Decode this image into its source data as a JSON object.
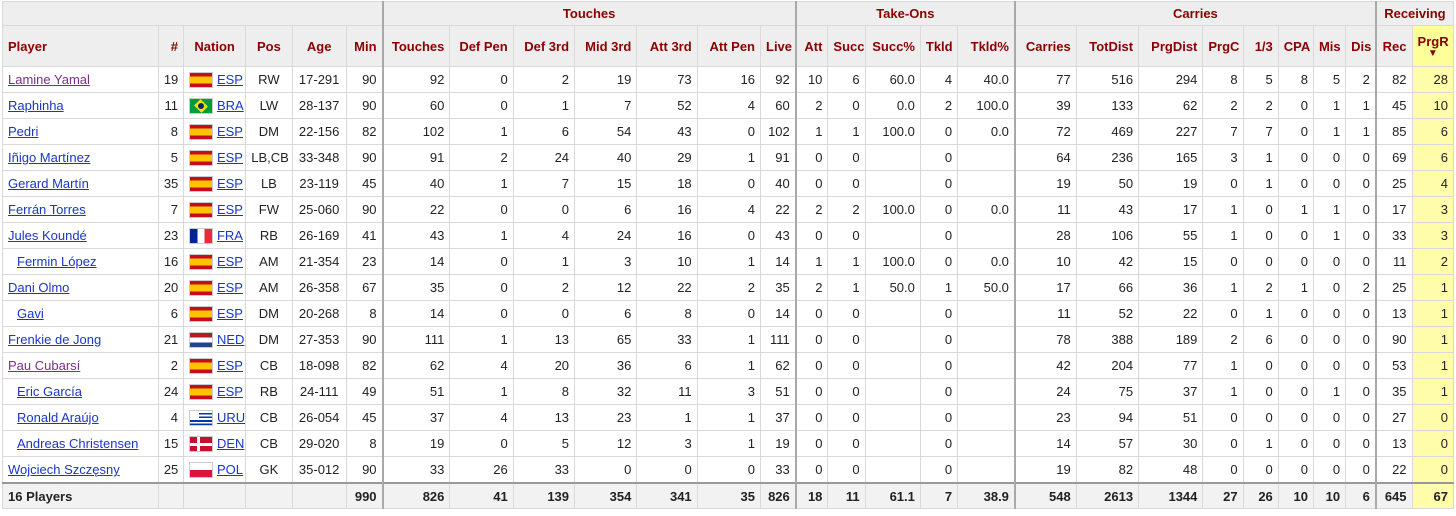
{
  "groups": [
    {
      "label": ""
    },
    {
      "label": "Touches"
    },
    {
      "label": "Take-Ons"
    },
    {
      "label": "Carries"
    },
    {
      "label": "Receiving"
    }
  ],
  "columns": [
    "Player",
    "#",
    "Nation",
    "Pos",
    "Age",
    "Min",
    "Touches",
    "Def Pen",
    "Def 3rd",
    "Mid 3rd",
    "Att 3rd",
    "Att Pen",
    "Live",
    "Att",
    "Succ",
    "Succ%",
    "Tkld",
    "Tkld%",
    "Carries",
    "TotDist",
    "PrgDist",
    "PrgC",
    "1/3",
    "CPA",
    "Mis",
    "Dis",
    "Rec",
    "PrgR"
  ],
  "sort_indicator": "▼",
  "rows": [
    {
      "player": "Lamine Yamal",
      "visited": true,
      "indent": false,
      "num": "19",
      "flag": "esp",
      "nation": "ESP",
      "pos": "RW",
      "age": "17-291",
      "min": "90",
      "stats": [
        "92",
        "0",
        "2",
        "19",
        "73",
        "16",
        "92",
        "10",
        "6",
        "60.0",
        "4",
        "40.0",
        "77",
        "516",
        "294",
        "8",
        "5",
        "8",
        "5",
        "2",
        "82",
        "28"
      ]
    },
    {
      "player": "Raphinha",
      "visited": false,
      "indent": false,
      "num": "11",
      "flag": "bra",
      "nation": "BRA",
      "pos": "LW",
      "age": "28-137",
      "min": "90",
      "stats": [
        "60",
        "0",
        "1",
        "7",
        "52",
        "4",
        "60",
        "2",
        "0",
        "0.0",
        "2",
        "100.0",
        "39",
        "133",
        "62",
        "2",
        "2",
        "0",
        "1",
        "1",
        "45",
        "10"
      ]
    },
    {
      "player": "Pedri",
      "visited": false,
      "indent": false,
      "num": "8",
      "flag": "esp",
      "nation": "ESP",
      "pos": "DM",
      "age": "22-156",
      "min": "82",
      "stats": [
        "102",
        "1",
        "6",
        "54",
        "43",
        "0",
        "102",
        "1",
        "1",
        "100.0",
        "0",
        "0.0",
        "72",
        "469",
        "227",
        "7",
        "7",
        "0",
        "1",
        "1",
        "85",
        "6"
      ]
    },
    {
      "player": "Iñigo Martínez",
      "visited": false,
      "indent": false,
      "num": "5",
      "flag": "esp",
      "nation": "ESP",
      "pos": "LB,CB",
      "age": "33-348",
      "min": "90",
      "stats": [
        "91",
        "2",
        "24",
        "40",
        "29",
        "1",
        "91",
        "0",
        "0",
        "",
        "0",
        "",
        "64",
        "236",
        "165",
        "3",
        "1",
        "0",
        "0",
        "0",
        "69",
        "6"
      ]
    },
    {
      "player": "Gerard Martín",
      "visited": false,
      "indent": false,
      "num": "35",
      "flag": "esp",
      "nation": "ESP",
      "pos": "LB",
      "age": "23-119",
      "min": "45",
      "stats": [
        "40",
        "1",
        "7",
        "15",
        "18",
        "0",
        "40",
        "0",
        "0",
        "",
        "0",
        "",
        "19",
        "50",
        "19",
        "0",
        "1",
        "0",
        "0",
        "0",
        "25",
        "4"
      ]
    },
    {
      "player": "Ferrán Torres",
      "visited": false,
      "indent": false,
      "num": "7",
      "flag": "esp",
      "nation": "ESP",
      "pos": "FW",
      "age": "25-060",
      "min": "90",
      "stats": [
        "22",
        "0",
        "0",
        "6",
        "16",
        "4",
        "22",
        "2",
        "2",
        "100.0",
        "0",
        "0.0",
        "11",
        "43",
        "17",
        "1",
        "0",
        "1",
        "1",
        "0",
        "17",
        "3"
      ]
    },
    {
      "player": "Jules Koundé",
      "visited": false,
      "indent": false,
      "num": "23",
      "flag": "fra",
      "nation": "FRA",
      "pos": "RB",
      "age": "26-169",
      "min": "41",
      "stats": [
        "43",
        "1",
        "4",
        "24",
        "16",
        "0",
        "43",
        "0",
        "0",
        "",
        "0",
        "",
        "28",
        "106",
        "55",
        "1",
        "0",
        "0",
        "1",
        "0",
        "33",
        "3"
      ]
    },
    {
      "player": "Fermin López",
      "visited": false,
      "indent": true,
      "num": "16",
      "flag": "esp",
      "nation": "ESP",
      "pos": "AM",
      "age": "21-354",
      "min": "23",
      "stats": [
        "14",
        "0",
        "1",
        "3",
        "10",
        "1",
        "14",
        "1",
        "1",
        "100.0",
        "0",
        "0.0",
        "10",
        "42",
        "15",
        "0",
        "0",
        "0",
        "0",
        "0",
        "11",
        "2"
      ]
    },
    {
      "player": "Dani Olmo",
      "visited": false,
      "indent": false,
      "num": "20",
      "flag": "esp",
      "nation": "ESP",
      "pos": "AM",
      "age": "26-358",
      "min": "67",
      "stats": [
        "35",
        "0",
        "2",
        "12",
        "22",
        "2",
        "35",
        "2",
        "1",
        "50.0",
        "1",
        "50.0",
        "17",
        "66",
        "36",
        "1",
        "2",
        "1",
        "0",
        "2",
        "25",
        "1"
      ]
    },
    {
      "player": "Gavi",
      "visited": false,
      "indent": true,
      "num": "6",
      "flag": "esp",
      "nation": "ESP",
      "pos": "DM",
      "age": "20-268",
      "min": "8",
      "stats": [
        "14",
        "0",
        "0",
        "6",
        "8",
        "0",
        "14",
        "0",
        "0",
        "",
        "0",
        "",
        "11",
        "52",
        "22",
        "0",
        "1",
        "0",
        "0",
        "0",
        "13",
        "1"
      ]
    },
    {
      "player": "Frenkie de Jong",
      "visited": false,
      "indent": false,
      "num": "21",
      "flag": "ned",
      "nation": "NED",
      "pos": "DM",
      "age": "27-353",
      "min": "90",
      "stats": [
        "111",
        "1",
        "13",
        "65",
        "33",
        "1",
        "111",
        "0",
        "0",
        "",
        "0",
        "",
        "78",
        "388",
        "189",
        "2",
        "6",
        "0",
        "0",
        "0",
        "90",
        "1"
      ]
    },
    {
      "player": "Pau Cubarsí",
      "visited": true,
      "indent": false,
      "num": "2",
      "flag": "esp",
      "nation": "ESP",
      "pos": "CB",
      "age": "18-098",
      "min": "82",
      "stats": [
        "62",
        "4",
        "20",
        "36",
        "6",
        "1",
        "62",
        "0",
        "0",
        "",
        "0",
        "",
        "42",
        "204",
        "77",
        "1",
        "0",
        "0",
        "0",
        "0",
        "53",
        "1"
      ]
    },
    {
      "player": "Eric García",
      "visited": false,
      "indent": true,
      "num": "24",
      "flag": "esp",
      "nation": "ESP",
      "pos": "RB",
      "age": "24-111",
      "min": "49",
      "stats": [
        "51",
        "1",
        "8",
        "32",
        "11",
        "3",
        "51",
        "0",
        "0",
        "",
        "0",
        "",
        "24",
        "75",
        "37",
        "1",
        "0",
        "0",
        "1",
        "0",
        "35",
        "1"
      ]
    },
    {
      "player": "Ronald Araújo",
      "visited": false,
      "indent": true,
      "num": "4",
      "flag": "uru",
      "nation": "URU",
      "pos": "CB",
      "age": "26-054",
      "min": "45",
      "stats": [
        "37",
        "4",
        "13",
        "23",
        "1",
        "1",
        "37",
        "0",
        "0",
        "",
        "0",
        "",
        "23",
        "94",
        "51",
        "0",
        "0",
        "0",
        "0",
        "0",
        "27",
        "0"
      ]
    },
    {
      "player": "Andreas Christensen",
      "visited": false,
      "indent": true,
      "num": "15",
      "flag": "den",
      "nation": "DEN",
      "pos": "CB",
      "age": "29-020",
      "min": "8",
      "stats": [
        "19",
        "0",
        "5",
        "12",
        "3",
        "1",
        "19",
        "0",
        "0",
        "",
        "0",
        "",
        "14",
        "57",
        "30",
        "0",
        "1",
        "0",
        "0",
        "0",
        "13",
        "0"
      ]
    },
    {
      "player": "Wojciech Szczęsny",
      "visited": false,
      "indent": false,
      "num": "25",
      "flag": "pol",
      "nation": "POL",
      "pos": "GK",
      "age": "35-012",
      "min": "90",
      "stats": [
        "33",
        "26",
        "33",
        "0",
        "0",
        "0",
        "33",
        "0",
        "0",
        "",
        "0",
        "",
        "19",
        "82",
        "48",
        "0",
        "0",
        "0",
        "0",
        "0",
        "22",
        "0"
      ]
    }
  ],
  "totals": {
    "label": "16 Players",
    "min": "990",
    "stats": [
      "826",
      "41",
      "139",
      "354",
      "341",
      "35",
      "826",
      "18",
      "11",
      "61.1",
      "7",
      "38.9",
      "548",
      "2613",
      "1344",
      "27",
      "26",
      "10",
      "10",
      "6",
      "645",
      "67"
    ]
  }
}
